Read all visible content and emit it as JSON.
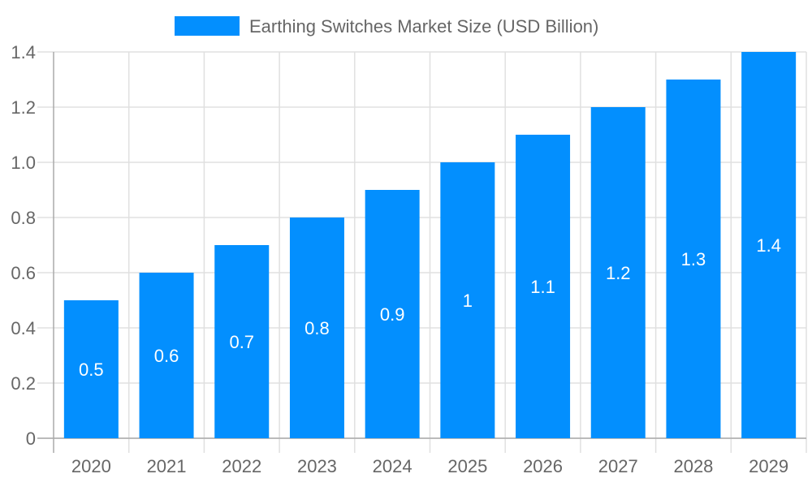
{
  "chart_data": {
    "type": "bar",
    "categories": [
      "2020",
      "2021",
      "2022",
      "2023",
      "2024",
      "2025",
      "2026",
      "2027",
      "2028",
      "2029"
    ],
    "series": [
      {
        "name": "Earthing Switches Market Size (USD Billion)",
        "values": [
          0.5,
          0.6,
          0.7,
          0.8,
          0.9,
          1,
          1.1,
          1.2,
          1.3,
          1.4
        ],
        "color": "#038ffe"
      }
    ],
    "data_labels": [
      "0.5",
      "0.6",
      "0.7",
      "0.8",
      "0.9",
      "1",
      "1.1",
      "1.2",
      "1.3",
      "1.4"
    ],
    "y_ticks": [
      "0",
      "0.2",
      "0.4",
      "0.6",
      "0.8",
      "1.0",
      "1.2",
      "1.4"
    ],
    "ylim": [
      0,
      1.4
    ],
    "grid": true,
    "legend_position": "top",
    "title": "",
    "xlabel": "",
    "ylabel": ""
  }
}
